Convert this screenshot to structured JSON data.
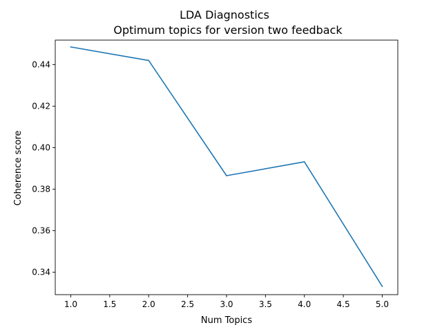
{
  "chart_data": {
    "type": "line",
    "title": "LDA Diagnostics",
    "subtitle": "Optimum topics for version two feedback",
    "xlabel": "Num Topics",
    "ylabel": "Coherence score",
    "series": [
      {
        "color": "#1f77b4",
        "x": [
          1.0,
          2.0,
          3.0,
          4.0,
          5.0
        ],
        "y": [
          0.4485,
          0.442,
          0.3865,
          0.3932,
          0.3332
        ]
      }
    ],
    "xlim": [
      0.8,
      5.2
    ],
    "ylim": [
      0.3292,
      0.4518
    ],
    "xticks": [
      1.0,
      1.5,
      2.0,
      2.5,
      3.0,
      3.5,
      4.0,
      4.5,
      5.0
    ],
    "xtick_labels": [
      "1.0",
      "1.5",
      "2.0",
      "2.5",
      "3.0",
      "3.5",
      "4.0",
      "4.5",
      "5.0"
    ],
    "yticks": [
      0.34,
      0.36,
      0.38,
      0.4,
      0.42,
      0.44
    ],
    "ytick_labels": [
      "0.34",
      "0.36",
      "0.38",
      "0.40",
      "0.42",
      "0.44"
    ],
    "grid": false,
    "legend": "none"
  }
}
